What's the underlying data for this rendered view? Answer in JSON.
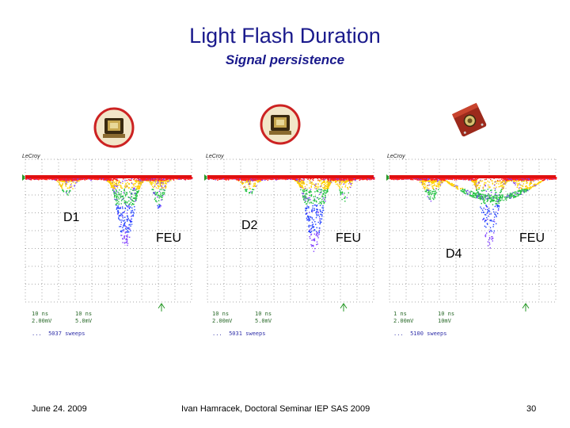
{
  "slide": {
    "title": "Light Flash Duration",
    "subtitle": "Signal persistence",
    "footer_date": "June 24. 2009",
    "footer_author": "Ivan Hamracek, Doctoral Seminar IEP SAS 2009",
    "page_number": "30"
  },
  "icons": {
    "badge_left": "pmt-photo-icon",
    "badge_middle": "pmt-photo-icon",
    "badge_right": "detector-photo-icon"
  },
  "scopes": [
    {
      "brand": "LeCroy",
      "signal_label": "D1",
      "feu_label": "FEU",
      "readout_left": [
        "10 ns",
        "2.00mV"
      ],
      "readout_right": [
        "10 ns",
        "5.0mV"
      ],
      "readout_bottom": "...  5037 sweeps"
    },
    {
      "brand": "LeCroy",
      "signal_label": "D2",
      "feu_label": "FEU",
      "readout_left": [
        "10 ns",
        "2.00mV"
      ],
      "readout_right": [
        "10 ns",
        "5.0mV"
      ],
      "readout_bottom": "...  5031 sweeps"
    },
    {
      "brand": "LeCroy",
      "signal_label": "D4",
      "feu_label": "FEU",
      "readout_left": [
        "1 ns",
        "2.00mV"
      ],
      "readout_right": [
        "10 ns",
        "10mV"
      ],
      "readout_bottom": "...  5100 sweeps"
    }
  ],
  "colors": {
    "title": "#1a1a8c",
    "trace_baseline": "#e01010",
    "persistence_hot": "#ff2020",
    "persistence_warm": "#ffd000",
    "persistence_mid": "#20c040",
    "persistence_cold": "#2040ff",
    "persistence_sparse": "#8040ff",
    "grid": "#555555"
  }
}
